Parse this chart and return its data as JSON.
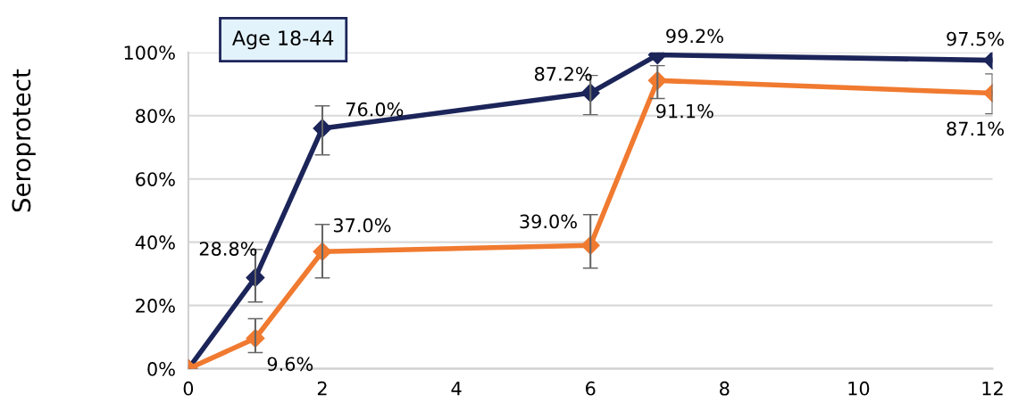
{
  "chart_data": {
    "type": "line",
    "ylabel": "Seroprotect",
    "annotations": [
      "Age 18-44"
    ],
    "x": [
      0,
      1,
      2,
      6,
      7,
      12
    ],
    "series": [
      {
        "color": "#1c2559",
        "values": [
          0,
          28.8,
          76.0,
          87.2,
          99.2,
          97.5
        ],
        "errors": [
          null,
          [
            21.1,
            37.7
          ],
          [
            67.6,
            83.1
          ],
          [
            80.3,
            92.7
          ],
          null,
          null
        ],
        "value_labels": [
          null,
          "28.8%",
          "76.0%",
          "87.2%",
          "99.2%",
          "97.5%"
        ]
      },
      {
        "color": "#f07a30",
        "values": [
          0,
          9.6,
          37.0,
          39.0,
          91.1,
          87.1
        ],
        "errors": [
          null,
          [
            5.1,
            15.8
          ],
          [
            28.7,
            45.6
          ],
          [
            31.8,
            48.7
          ],
          [
            85.4,
            95.8
          ],
          [
            80.6,
            93.2
          ]
        ],
        "value_labels": [
          null,
          "9.6%",
          "37.0%",
          "39.0%",
          "91.1%",
          "87.1%"
        ]
      }
    ],
    "xlim": [
      0,
      12
    ],
    "xticks": [
      0,
      2,
      4,
      6,
      8,
      10,
      12
    ],
    "ylim": [
      0,
      100
    ],
    "yticks": [
      {
        "value": 0,
        "label": "0%"
      },
      {
        "value": 20,
        "label": "20%"
      },
      {
        "value": 40,
        "label": "40%"
      },
      {
        "value": 60,
        "label": "60%"
      },
      {
        "value": 80,
        "label": "80%"
      },
      {
        "value": 100,
        "label": "100%"
      }
    ],
    "grid": "y",
    "marker": "diamond",
    "line_style": "solid",
    "data_labels": false
  }
}
